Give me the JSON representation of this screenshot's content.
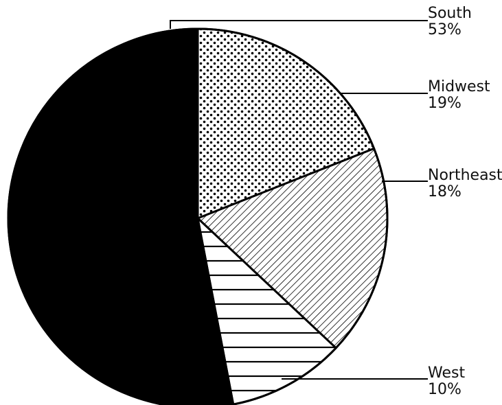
{
  "chart_data": {
    "type": "pie",
    "title": "",
    "start_angle_deg": 0,
    "direction": "clockwise",
    "slices": [
      {
        "label": "Midwest",
        "value": 19,
        "value_label": "19%",
        "pattern": "dots-diamond"
      },
      {
        "label": "Northeast",
        "value": 18,
        "value_label": "18%",
        "pattern": "diagonal-hatch"
      },
      {
        "label": "West",
        "value": 10,
        "value_label": "10%",
        "pattern": "horizontal-lines"
      },
      {
        "label": "South",
        "value": 53,
        "value_label": "53%",
        "pattern": "solid-black"
      }
    ]
  }
}
